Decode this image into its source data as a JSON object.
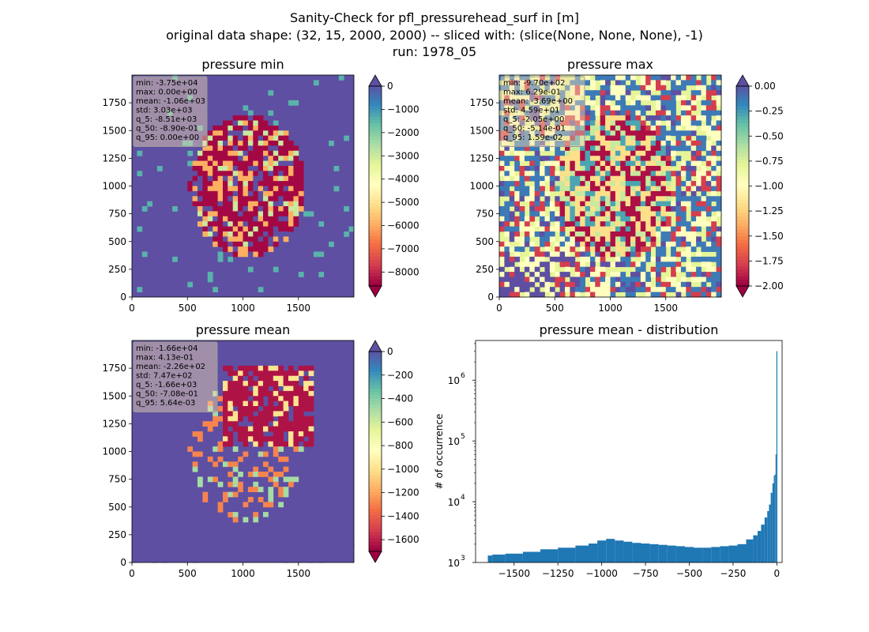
{
  "figure": {
    "suptitle_lines": [
      "Sanity-Check for pfl_pressurehead_surf in [m]",
      "original data shape: (32, 15, 2000, 2000) -- sliced with: (slice(None, None, None), -1)",
      "run: 1978_05"
    ]
  },
  "chart_data": [
    {
      "type": "heatmap",
      "title": "pressure min",
      "colormap": "Spectral",
      "colorbar_extend": "both",
      "colorbar_range": [
        -8600,
        0
      ],
      "colorbar_ticks": [
        0,
        -1000,
        -2000,
        -3000,
        -4000,
        -5000,
        -6000,
        -7000,
        -8000
      ],
      "colorbar_tick_labels": [
        "0",
        "−1000",
        "−2000",
        "−3000",
        "−4000",
        "−5000",
        "−6000",
        "−7000",
        "−8000"
      ],
      "x_ticks": [
        0,
        500,
        1000,
        1500
      ],
      "y_ticks": [
        0,
        250,
        500,
        750,
        1000,
        1250,
        1500,
        1750
      ],
      "xlim": [
        0,
        2000
      ],
      "ylim": [
        0,
        2000
      ],
      "dominant_value": 0,
      "stats_box": [
        "min: -3.75e+04",
        "max: 0.00e+00",
        "mean: -1.06e+03",
        "std: 3.03e+03",
        "q_5: -8.51e+03",
        "q_50: -8.90e-01",
        "q_95: 0.00e+00"
      ]
    },
    {
      "type": "heatmap",
      "title": "pressure max",
      "colormap": "Spectral",
      "colorbar_extend": "both",
      "colorbar_range": [
        -2.0,
        0.0
      ],
      "colorbar_ticks": [
        0.0,
        -0.25,
        -0.5,
        -0.75,
        -1.0,
        -1.25,
        -1.5,
        -1.75,
        -2.0
      ],
      "colorbar_tick_labels": [
        "0.00",
        "−0.25",
        "−0.50",
        "−0.75",
        "−1.00",
        "−1.25",
        "−1.50",
        "−1.75",
        "−2.00"
      ],
      "x_ticks": [
        0,
        500,
        1000,
        1500
      ],
      "y_ticks": [
        0,
        250,
        500,
        750,
        1000,
        1250,
        1500,
        1750
      ],
      "xlim": [
        0,
        2000
      ],
      "ylim": [
        0,
        2000
      ],
      "dominant_value": -0.8,
      "stats_box": [
        "min: -9.70e+02",
        "max: 6.29e-01",
        "mean: -3.69e+00",
        "std: 4.59e+01",
        "q_5: -2.05e+00",
        "q_50: -5.14e-01",
        "q_95: 1.59e-02"
      ]
    },
    {
      "type": "heatmap",
      "title": "pressure mean",
      "colormap": "Spectral",
      "colorbar_extend": "both",
      "colorbar_range": [
        -1700,
        0
      ],
      "colorbar_ticks": [
        0,
        -200,
        -400,
        -600,
        -800,
        -1000,
        -1200,
        -1400,
        -1600
      ],
      "colorbar_tick_labels": [
        "0",
        "−200",
        "−400",
        "−600",
        "−800",
        "−1000",
        "−1200",
        "−1400",
        "−1600"
      ],
      "x_ticks": [
        0,
        500,
        1000,
        1500
      ],
      "y_ticks": [
        0,
        250,
        500,
        750,
        1000,
        1250,
        1500,
        1750
      ],
      "xlim": [
        0,
        2000
      ],
      "ylim": [
        0,
        2000
      ],
      "dominant_value": 0,
      "stats_box": [
        "min: -1.66e+04",
        "max: 4.13e-01",
        "mean: -2.26e+02",
        "std: 7.47e+02",
        "q_5: -1.66e+03",
        "q_50: -7.08e-01",
        "q_95: 5.64e-03"
      ]
    },
    {
      "type": "bar",
      "title": "pressure mean - distribution",
      "ylabel": "# of occurrence",
      "xlabel": "",
      "yscale": "log",
      "ylim": [
        1000,
        4500000
      ],
      "xlim": [
        -1720,
        30
      ],
      "x_ticks": [
        -1500,
        -1250,
        -1000,
        -750,
        -500,
        -250,
        0
      ],
      "x_tick_labels": [
        "−1500",
        "−1250",
        "−1000",
        "−750",
        "−500",
        "−250",
        "0"
      ],
      "y_ticks": [
        1000,
        10000,
        100000,
        1000000
      ],
      "y_tick_base": "10",
      "y_tick_exponents": [
        "3",
        "4",
        "5",
        "6"
      ],
      "bar_color": "#1f77b4",
      "x": [
        -1650,
        -1600,
        -1500,
        -1400,
        -1300,
        -1200,
        -1100,
        -1050,
        -1000,
        -950,
        -900,
        -850,
        -800,
        -750,
        -700,
        -650,
        -600,
        -550,
        -500,
        -450,
        -400,
        -350,
        -300,
        -250,
        -200,
        -150,
        -120,
        -100,
        -80,
        -60,
        -50,
        -40,
        -30,
        -20,
        -15,
        -10,
        -5,
        0
      ],
      "values": [
        1300,
        1350,
        1400,
        1500,
        1650,
        1750,
        1900,
        2050,
        2300,
        2450,
        2300,
        2200,
        2100,
        2050,
        2000,
        1950,
        1900,
        1850,
        1800,
        1750,
        1750,
        1800,
        1850,
        1900,
        2000,
        2400,
        2800,
        3300,
        4200,
        5500,
        7000,
        9000,
        14000,
        20000,
        27000,
        28000,
        60000,
        3000000
      ]
    }
  ]
}
